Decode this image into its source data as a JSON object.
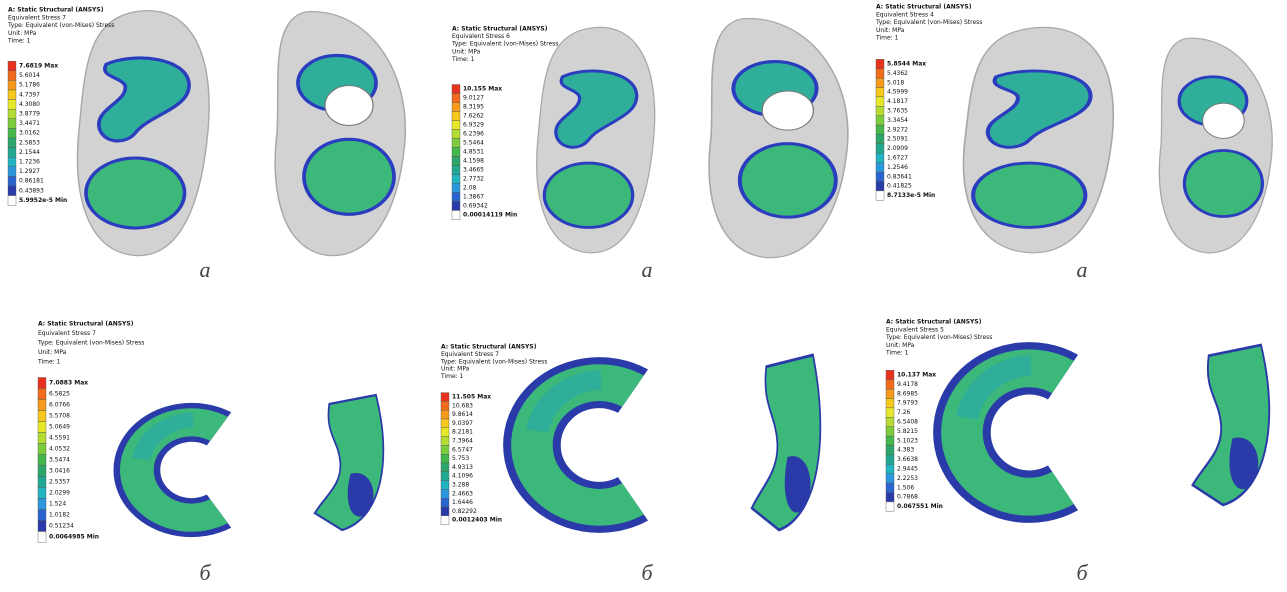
{
  "panels": [
    {
      "header": [
        "A: Static Structural (ANSYS)",
        "Equivalent Stress 7",
        "Type: Equivalent (von-Mises) Stress",
        "Unit: MPa",
        "Time: 1"
      ],
      "legend": [
        "7.6819 Max",
        "5.6014",
        "5.1786",
        "4.7397",
        "4.3080",
        "3.8779",
        "3.4471",
        "3.0162",
        "2.5853",
        "2.1544",
        "1.7236",
        "1.2927",
        "0.86181",
        "0.43893",
        "5.9952e-5 Min"
      ],
      "caption": "а"
    },
    {
      "header": [
        "A: Static Structural (ANSYS)",
        "Equivalent Stress 6",
        "Type: Equivalent (von-Mises) Stress",
        "Unit: MPa",
        "Time: 1"
      ],
      "legend": [
        "10.155 Max",
        "9.0127",
        "8.3195",
        "7.6262",
        "6.9329",
        "6.2396",
        "5.5464",
        "4.8531",
        "4.1598",
        "3.4665",
        "2.7732",
        "2.08",
        "1.3867",
        "0.69342",
        "0.00014119 Min"
      ],
      "caption": "а"
    },
    {
      "header": [
        "A: Static Structural (ANSYS)",
        "Equivalent Stress 4",
        "Type: Equivalent (von-Mises) Stress",
        "Unit: MPa",
        "Time: 1"
      ],
      "legend": [
        "5.8544 Max",
        "5.4362",
        "5.018",
        "4.5999",
        "4.1817",
        "3.7635",
        "3.3454",
        "2.9272",
        "2.5091",
        "2.0909",
        "1.6727",
        "1.2546",
        "0.83641",
        "0.41825",
        "8.7133e-5 Min"
      ],
      "caption": "а"
    },
    {
      "header": [
        "A: Static Structural (ANSYS)",
        "Equivalent Stress 7",
        "Type: Equivalent (von-Mises) Stress",
        "Unit: MPa",
        "Time: 1"
      ],
      "legend": [
        "7.0883 Max",
        "6.5825",
        "6.0766",
        "5.5708",
        "5.0649",
        "4.5591",
        "4.0532",
        "3.5474",
        "3.0416",
        "2.5357",
        "2.0299",
        "1.524",
        "1.0182",
        "0.51234",
        "0.0064985 Min"
      ],
      "caption": "б"
    },
    {
      "header": [
        "A: Static Structural (ANSYS)",
        "Equivalent Stress 7",
        "Type: Equivalent (von-Mises) Stress",
        "Unit: MPa",
        "Time: 1"
      ],
      "legend": [
        "11.505 Max",
        "10.683",
        "9.8614",
        "9.0397",
        "8.2181",
        "7.3964",
        "6.5747",
        "5.753",
        "4.9313",
        "4.1096",
        "3.288",
        "2.4663",
        "1.6446",
        "0.82292",
        "0.0012403 Min"
      ],
      "caption": "б"
    },
    {
      "header": [
        "A: Static Structural (ANSYS)",
        "Equivalent Stress 5",
        "Type: Equivalent (von-Mises) Stress",
        "Unit: MPa",
        "Time: 1"
      ],
      "legend": [
        "10.137 Max",
        "9.4178",
        "8.6985",
        "7.9793",
        "7.26",
        "6.5408",
        "5.8215",
        "5.1023",
        "4.383",
        "3.6638",
        "2.9445",
        "2.2253",
        "1.506",
        "0.7868",
        "0.067551 Min"
      ],
      "caption": "б"
    }
  ]
}
